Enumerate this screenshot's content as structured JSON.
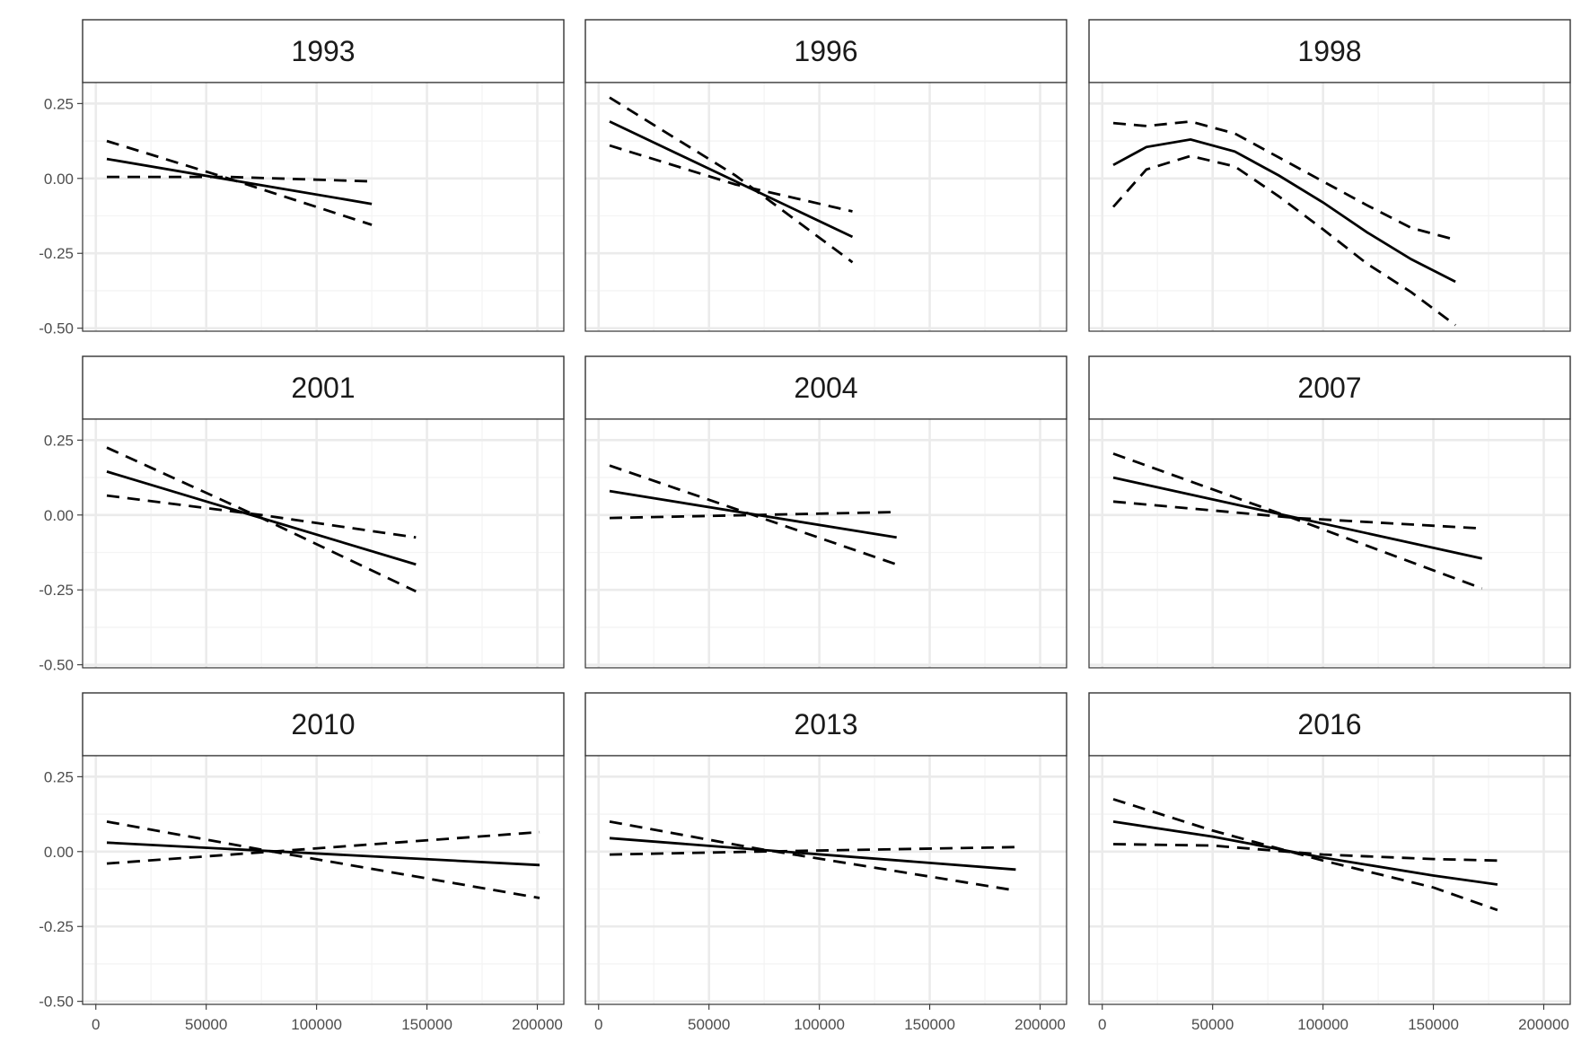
{
  "chart_data": {
    "type": "line",
    "layout": "faceted 3x3 grid, shared axes",
    "title": "",
    "xlabel": "",
    "ylabel": "",
    "xlim": [
      -6000,
      212000
    ],
    "ylim": [
      -0.51,
      0.32
    ],
    "x_ticks": [
      0,
      50000,
      100000,
      150000,
      200000
    ],
    "x_tick_labels": [
      "0",
      "50000",
      "100000",
      "150000",
      "200000"
    ],
    "y_ticks": [
      0.25,
      0.0,
      -0.25,
      -0.5
    ],
    "y_tick_labels": [
      "0.25",
      "0.00",
      "-0.25",
      "-0.50"
    ],
    "grid": true,
    "legend": "none",
    "line_styles": {
      "fit": "solid",
      "lower": "dashed",
      "upper": "dashed"
    },
    "colors": {
      "lines": "#000000",
      "grid": "#ebebeb",
      "border": "#333333"
    },
    "panels": [
      {
        "label": "1993",
        "fit": {
          "x": [
            5000,
            125000
          ],
          "y": [
            0.065,
            -0.085
          ]
        },
        "lower": {
          "x": [
            5000,
            60000,
            125000
          ],
          "y": [
            0.125,
            0.0,
            -0.155
          ]
        },
        "upper": {
          "x": [
            5000,
            60000,
            125000
          ],
          "y": [
            0.005,
            0.005,
            -0.01
          ]
        }
      },
      {
        "label": "1996",
        "fit": {
          "x": [
            5000,
            115000
          ],
          "y": [
            0.19,
            -0.195
          ]
        },
        "lower": {
          "x": [
            5000,
            62000,
            115000
          ],
          "y": [
            0.27,
            0.01,
            -0.28
          ]
        },
        "upper": {
          "x": [
            5000,
            62000,
            115000
          ],
          "y": [
            0.11,
            -0.02,
            -0.11
          ]
        }
      },
      {
        "label": "1998",
        "fit": {
          "x": [
            5000,
            20000,
            40000,
            60000,
            80000,
            100000,
            120000,
            140000,
            160000
          ],
          "y": [
            0.045,
            0.105,
            0.13,
            0.09,
            0.01,
            -0.08,
            -0.18,
            -0.27,
            -0.345
          ]
        },
        "lower": {
          "x": [
            5000,
            20000,
            40000,
            60000,
            80000,
            100000,
            120000,
            140000,
            160000
          ],
          "y": [
            -0.095,
            0.03,
            0.075,
            0.04,
            -0.06,
            -0.17,
            -0.285,
            -0.38,
            -0.49
          ]
        },
        "upper": {
          "x": [
            5000,
            20000,
            40000,
            60000,
            80000,
            100000,
            120000,
            140000,
            160000
          ],
          "y": [
            0.185,
            0.175,
            0.19,
            0.15,
            0.07,
            -0.01,
            -0.09,
            -0.165,
            -0.205
          ]
        }
      },
      {
        "label": "2001",
        "fit": {
          "x": [
            5000,
            145000
          ],
          "y": [
            0.145,
            -0.165
          ]
        },
        "lower": {
          "x": [
            5000,
            75000,
            145000
          ],
          "y": [
            0.225,
            -0.01,
            -0.255
          ]
        },
        "upper": {
          "x": [
            5000,
            75000,
            145000
          ],
          "y": [
            0.065,
            0.0,
            -0.075
          ]
        }
      },
      {
        "label": "2004",
        "fit": {
          "x": [
            5000,
            135000
          ],
          "y": [
            0.08,
            -0.075
          ]
        },
        "lower": {
          "x": [
            5000,
            70000,
            135000
          ],
          "y": [
            0.165,
            0.0,
            -0.165
          ]
        },
        "upper": {
          "x": [
            5000,
            70000,
            135000
          ],
          "y": [
            -0.01,
            0.0,
            0.01
          ]
        }
      },
      {
        "label": "2007",
        "fit": {
          "x": [
            5000,
            172000
          ],
          "y": [
            0.125,
            -0.145
          ]
        },
        "lower": {
          "x": [
            5000,
            88000,
            172000
          ],
          "y": [
            0.205,
            -0.015,
            -0.245
          ]
        },
        "upper": {
          "x": [
            5000,
            88000,
            172000
          ],
          "y": [
            0.045,
            -0.01,
            -0.045
          ]
        }
      },
      {
        "label": "2010",
        "fit": {
          "x": [
            5000,
            201000
          ],
          "y": [
            0.03,
            -0.045
          ]
        },
        "lower": {
          "x": [
            5000,
            80000,
            201000
          ],
          "y": [
            0.1,
            0.0,
            -0.155
          ]
        },
        "upper": {
          "x": [
            5000,
            80000,
            201000
          ],
          "y": [
            -0.04,
            0.0,
            0.065
          ]
        }
      },
      {
        "label": "2013",
        "fit": {
          "x": [
            5000,
            189000
          ],
          "y": [
            0.045,
            -0.06
          ]
        },
        "lower": {
          "x": [
            5000,
            72000,
            189000
          ],
          "y": [
            0.1,
            0.01,
            -0.13
          ]
        },
        "upper": {
          "x": [
            5000,
            72000,
            189000
          ],
          "y": [
            -0.01,
            0.0,
            0.015
          ]
        }
      },
      {
        "label": "2016",
        "fit": {
          "x": [
            5000,
            50000,
            100000,
            150000,
            179000
          ],
          "y": [
            0.1,
            0.05,
            -0.02,
            -0.08,
            -0.11
          ]
        },
        "lower": {
          "x": [
            5000,
            50000,
            100000,
            150000,
            179000
          ],
          "y": [
            0.175,
            0.07,
            -0.03,
            -0.12,
            -0.195
          ]
        },
        "upper": {
          "x": [
            5000,
            50000,
            100000,
            150000,
            179000
          ],
          "y": [
            0.025,
            0.02,
            -0.01,
            -0.025,
            -0.03
          ]
        }
      }
    ]
  }
}
